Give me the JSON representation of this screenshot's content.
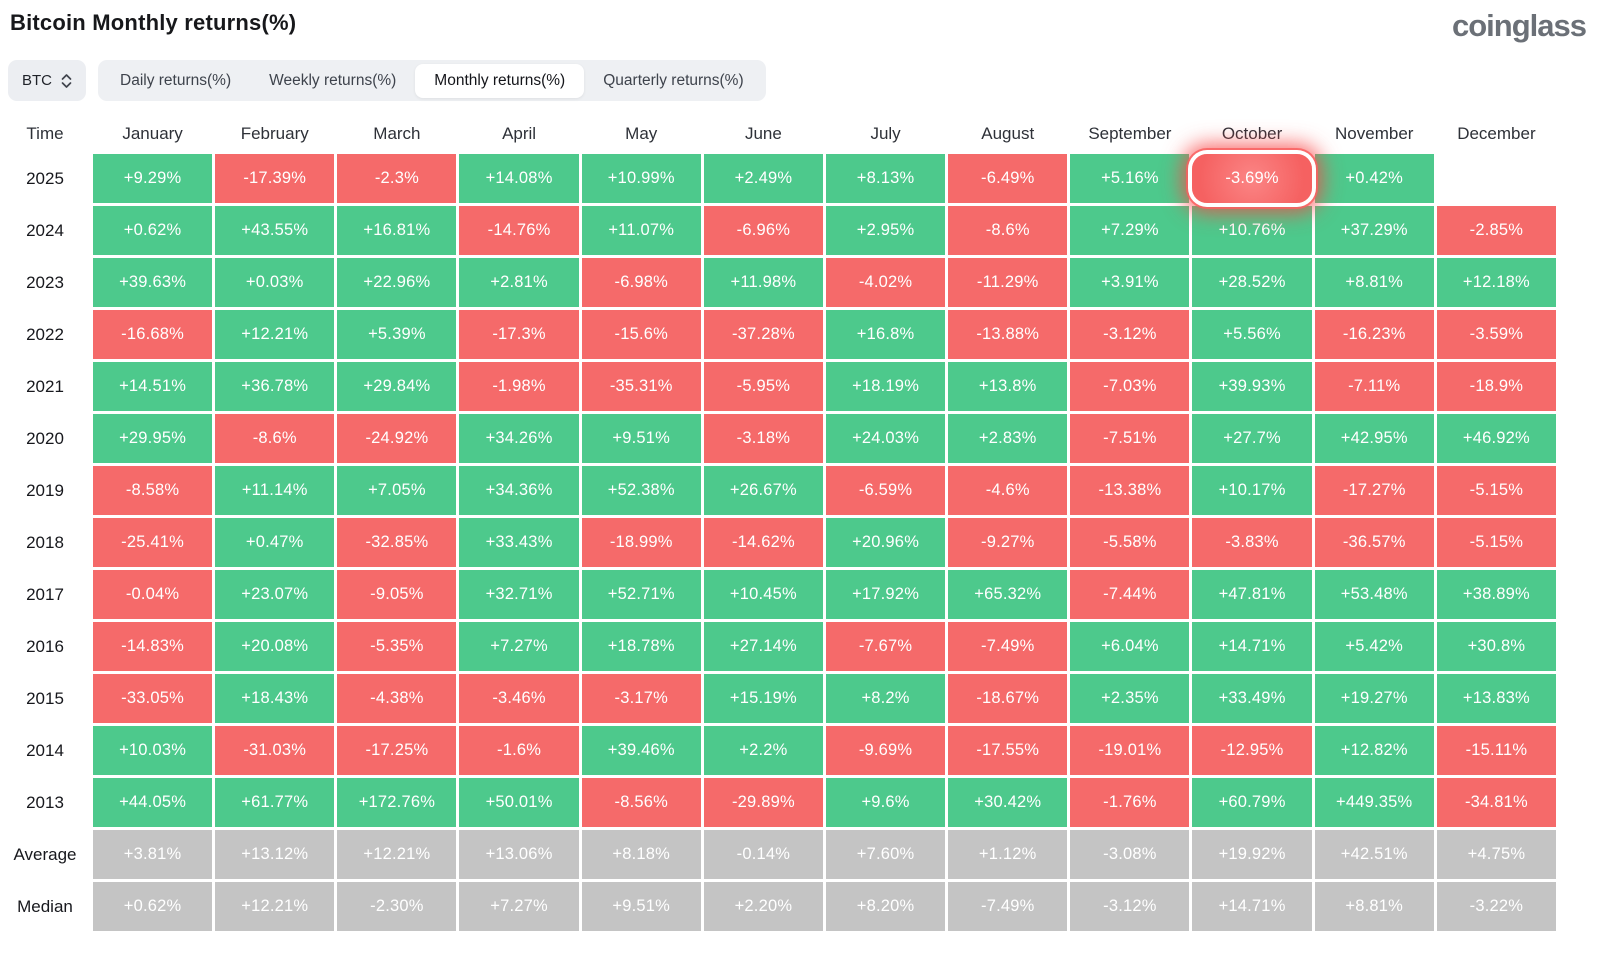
{
  "page": {
    "title": "Bitcoin Monthly returns(%)",
    "logo": "coinglass"
  },
  "controls": {
    "symbol_select": {
      "value": "BTC"
    },
    "tabs": [
      {
        "label": "Daily returns(%)",
        "active": false
      },
      {
        "label": "Weekly returns(%)",
        "active": false
      },
      {
        "label": "Monthly returns(%)",
        "active": true
      },
      {
        "label": "Quarterly returns(%)",
        "active": false
      }
    ]
  },
  "table": {
    "columns": [
      "Time",
      "January",
      "February",
      "March",
      "April",
      "May",
      "June",
      "July",
      "August",
      "September",
      "October",
      "November",
      "December"
    ],
    "rows": [
      {
        "label": "2025",
        "type": "year",
        "cells": [
          "+9.29%",
          "-17.39%",
          "-2.3%",
          "+14.08%",
          "+10.99%",
          "+2.49%",
          "+8.13%",
          "-6.49%",
          "+5.16%",
          "-3.69%",
          "+0.42%",
          ""
        ]
      },
      {
        "label": "2024",
        "type": "year",
        "cells": [
          "+0.62%",
          "+43.55%",
          "+16.81%",
          "-14.76%",
          "+11.07%",
          "-6.96%",
          "+2.95%",
          "-8.6%",
          "+7.29%",
          "+10.76%",
          "+37.29%",
          "-2.85%"
        ]
      },
      {
        "label": "2023",
        "type": "year",
        "cells": [
          "+39.63%",
          "+0.03%",
          "+22.96%",
          "+2.81%",
          "-6.98%",
          "+11.98%",
          "-4.02%",
          "-11.29%",
          "+3.91%",
          "+28.52%",
          "+8.81%",
          "+12.18%"
        ]
      },
      {
        "label": "2022",
        "type": "year",
        "cells": [
          "-16.68%",
          "+12.21%",
          "+5.39%",
          "-17.3%",
          "-15.6%",
          "-37.28%",
          "+16.8%",
          "-13.88%",
          "-3.12%",
          "+5.56%",
          "-16.23%",
          "-3.59%"
        ]
      },
      {
        "label": "2021",
        "type": "year",
        "cells": [
          "+14.51%",
          "+36.78%",
          "+29.84%",
          "-1.98%",
          "-35.31%",
          "-5.95%",
          "+18.19%",
          "+13.8%",
          "-7.03%",
          "+39.93%",
          "-7.11%",
          "-18.9%"
        ]
      },
      {
        "label": "2020",
        "type": "year",
        "cells": [
          "+29.95%",
          "-8.6%",
          "-24.92%",
          "+34.26%",
          "+9.51%",
          "-3.18%",
          "+24.03%",
          "+2.83%",
          "-7.51%",
          "+27.7%",
          "+42.95%",
          "+46.92%"
        ]
      },
      {
        "label": "2019",
        "type": "year",
        "cells": [
          "-8.58%",
          "+11.14%",
          "+7.05%",
          "+34.36%",
          "+52.38%",
          "+26.67%",
          "-6.59%",
          "-4.6%",
          "-13.38%",
          "+10.17%",
          "-17.27%",
          "-5.15%"
        ]
      },
      {
        "label": "2018",
        "type": "year",
        "cells": [
          "-25.41%",
          "+0.47%",
          "-32.85%",
          "+33.43%",
          "-18.99%",
          "-14.62%",
          "+20.96%",
          "-9.27%",
          "-5.58%",
          "-3.83%",
          "-36.57%",
          "-5.15%"
        ]
      },
      {
        "label": "2017",
        "type": "year",
        "cells": [
          "-0.04%",
          "+23.07%",
          "-9.05%",
          "+32.71%",
          "+52.71%",
          "+10.45%",
          "+17.92%",
          "+65.32%",
          "-7.44%",
          "+47.81%",
          "+53.48%",
          "+38.89%"
        ]
      },
      {
        "label": "2016",
        "type": "year",
        "cells": [
          "-14.83%",
          "+20.08%",
          "-5.35%",
          "+7.27%",
          "+18.78%",
          "+27.14%",
          "-7.67%",
          "-7.49%",
          "+6.04%",
          "+14.71%",
          "+5.42%",
          "+30.8%"
        ]
      },
      {
        "label": "2015",
        "type": "year",
        "cells": [
          "-33.05%",
          "+18.43%",
          "-4.38%",
          "-3.46%",
          "-3.17%",
          "+15.19%",
          "+8.2%",
          "-18.67%",
          "+2.35%",
          "+33.49%",
          "+19.27%",
          "+13.83%"
        ]
      },
      {
        "label": "2014",
        "type": "year",
        "cells": [
          "+10.03%",
          "-31.03%",
          "-17.25%",
          "-1.6%",
          "+39.46%",
          "+2.2%",
          "-9.69%",
          "-17.55%",
          "-19.01%",
          "-12.95%",
          "+12.82%",
          "-15.11%"
        ]
      },
      {
        "label": "2013",
        "type": "year",
        "cells": [
          "+44.05%",
          "+61.77%",
          "+172.76%",
          "+50.01%",
          "-8.56%",
          "-29.89%",
          "+9.6%",
          "+30.42%",
          "-1.76%",
          "+60.79%",
          "+449.35%",
          "-34.81%"
        ]
      },
      {
        "label": "Average",
        "type": "summary",
        "cells": [
          "+3.81%",
          "+13.12%",
          "+12.21%",
          "+13.06%",
          "+8.18%",
          "-0.14%",
          "+7.60%",
          "+1.12%",
          "-3.08%",
          "+19.92%",
          "+42.51%",
          "+4.75%"
        ]
      },
      {
        "label": "Median",
        "type": "summary",
        "cells": [
          "+0.62%",
          "+12.21%",
          "-2.30%",
          "+7.27%",
          "+9.51%",
          "+2.20%",
          "+8.20%",
          "-7.49%",
          "-3.12%",
          "+14.71%",
          "+8.81%",
          "-3.22%"
        ]
      }
    ],
    "highlight": {
      "row_label": "2025",
      "month": "October"
    },
    "colors": {
      "positive": "#4DC98C",
      "negative": "#F56A6A",
      "summary": "#C4C4C4",
      "highlight_glow": "#F74646",
      "empty": "#FFFFFF"
    }
  },
  "chart_data": {
    "type": "heatmap",
    "title": "Bitcoin Monthly returns(%)",
    "x_categories": [
      "January",
      "February",
      "March",
      "April",
      "May",
      "June",
      "July",
      "August",
      "September",
      "October",
      "November",
      "December"
    ],
    "y_categories": [
      "2025",
      "2024",
      "2023",
      "2022",
      "2021",
      "2020",
      "2019",
      "2018",
      "2017",
      "2016",
      "2015",
      "2014",
      "2013",
      "Average",
      "Median"
    ],
    "series": [
      {
        "name": "2025",
        "values": [
          9.29,
          -17.39,
          -2.3,
          14.08,
          10.99,
          2.49,
          8.13,
          -6.49,
          5.16,
          -3.69,
          0.42,
          null
        ]
      },
      {
        "name": "2024",
        "values": [
          0.62,
          43.55,
          16.81,
          -14.76,
          11.07,
          -6.96,
          2.95,
          -8.6,
          7.29,
          10.76,
          37.29,
          -2.85
        ]
      },
      {
        "name": "2023",
        "values": [
          39.63,
          0.03,
          22.96,
          2.81,
          -6.98,
          11.98,
          -4.02,
          -11.29,
          3.91,
          28.52,
          8.81,
          12.18
        ]
      },
      {
        "name": "2022",
        "values": [
          -16.68,
          12.21,
          5.39,
          -17.3,
          -15.6,
          -37.28,
          16.8,
          -13.88,
          -3.12,
          5.56,
          -16.23,
          -3.59
        ]
      },
      {
        "name": "2021",
        "values": [
          14.51,
          36.78,
          29.84,
          -1.98,
          -35.31,
          -5.95,
          18.19,
          13.8,
          -7.03,
          39.93,
          -7.11,
          -18.9
        ]
      },
      {
        "name": "2020",
        "values": [
          29.95,
          -8.6,
          -24.92,
          34.26,
          9.51,
          -3.18,
          24.03,
          2.83,
          -7.51,
          27.7,
          42.95,
          46.92
        ]
      },
      {
        "name": "2019",
        "values": [
          -8.58,
          11.14,
          7.05,
          34.36,
          52.38,
          26.67,
          -6.59,
          -4.6,
          -13.38,
          10.17,
          -17.27,
          -5.15
        ]
      },
      {
        "name": "2018",
        "values": [
          -25.41,
          0.47,
          -32.85,
          33.43,
          -18.99,
          -14.62,
          20.96,
          -9.27,
          -5.58,
          -3.83,
          -36.57,
          -5.15
        ]
      },
      {
        "name": "2017",
        "values": [
          -0.04,
          23.07,
          -9.05,
          32.71,
          52.71,
          10.45,
          17.92,
          65.32,
          -7.44,
          47.81,
          53.48,
          38.89
        ]
      },
      {
        "name": "2016",
        "values": [
          -14.83,
          20.08,
          -5.35,
          7.27,
          18.78,
          27.14,
          -7.67,
          -7.49,
          6.04,
          14.71,
          5.42,
          30.8
        ]
      },
      {
        "name": "2015",
        "values": [
          -33.05,
          18.43,
          -4.38,
          -3.46,
          -3.17,
          15.19,
          8.2,
          -18.67,
          2.35,
          33.49,
          19.27,
          13.83
        ]
      },
      {
        "name": "2014",
        "values": [
          10.03,
          -31.03,
          -17.25,
          -1.6,
          39.46,
          2.2,
          -9.69,
          -17.55,
          -19.01,
          -12.95,
          12.82,
          -15.11
        ]
      },
      {
        "name": "2013",
        "values": [
          44.05,
          61.77,
          172.76,
          50.01,
          -8.56,
          -29.89,
          9.6,
          30.42,
          -1.76,
          60.79,
          449.35,
          -34.81
        ]
      },
      {
        "name": "Average",
        "values": [
          3.81,
          13.12,
          12.21,
          13.06,
          8.18,
          -0.14,
          7.6,
          1.12,
          -3.08,
          19.92,
          42.51,
          4.75
        ]
      },
      {
        "name": "Median",
        "values": [
          0.62,
          12.21,
          -2.3,
          7.27,
          9.51,
          2.2,
          8.2,
          -7.49,
          -3.12,
          14.71,
          8.81,
          -3.22
        ]
      }
    ],
    "legend": "green = positive month, red = negative month, gray = summary rows, highlighted cell = October 2025 (-3.69%)"
  }
}
